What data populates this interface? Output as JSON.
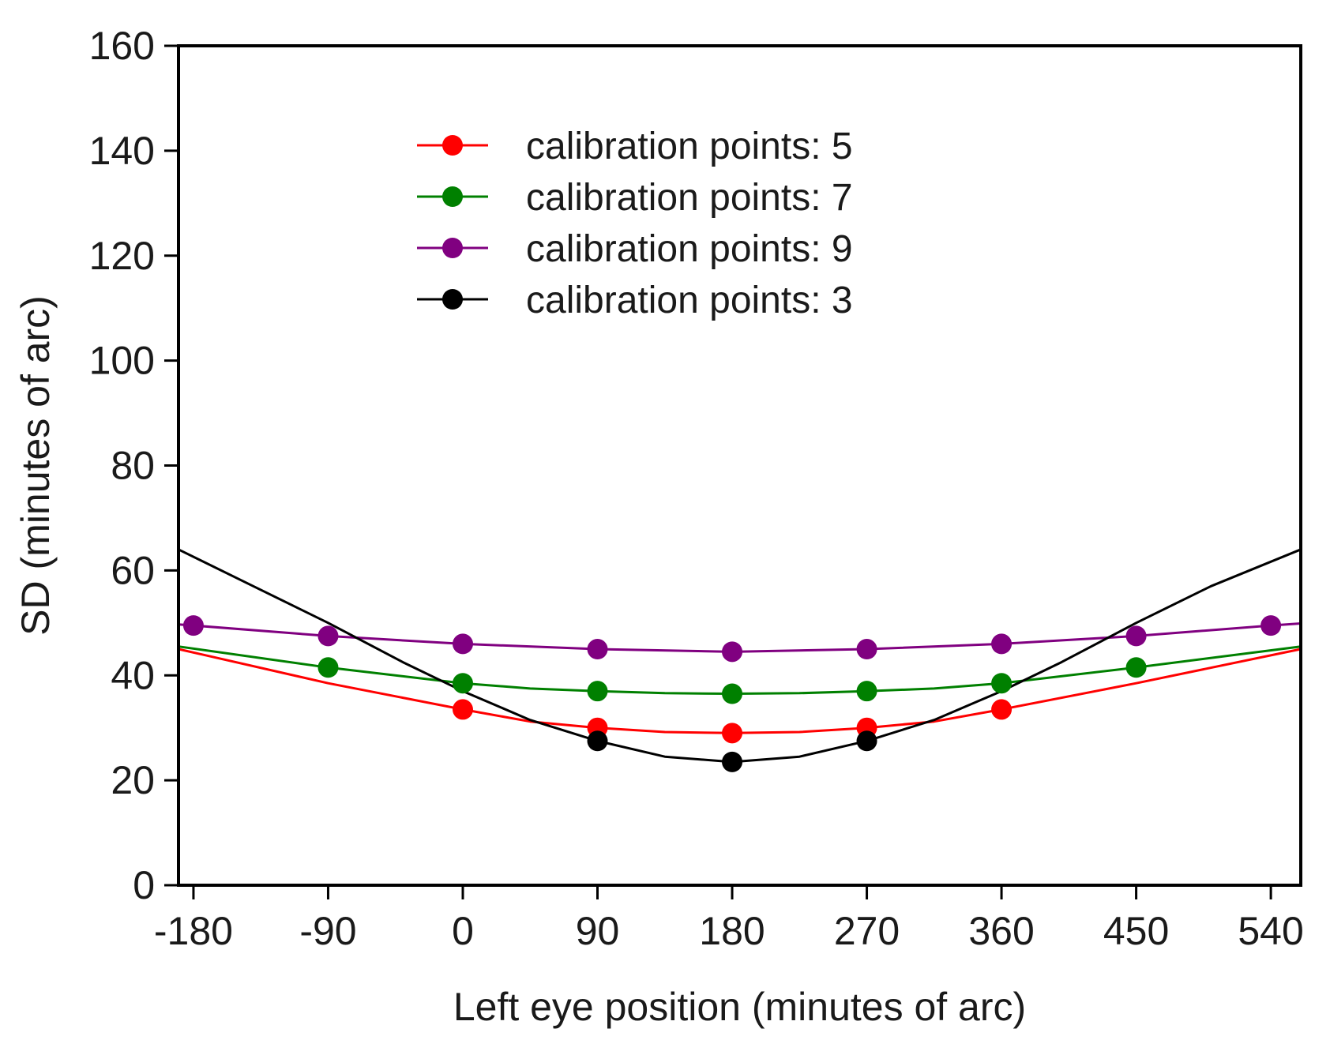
{
  "chart_data": {
    "type": "line",
    "title": "",
    "xlabel": "Left eye position (minutes of arc)",
    "ylabel": "SD (minutes of arc)",
    "xlim": [
      -190,
      560
    ],
    "ylim": [
      0,
      160
    ],
    "x_ticks": [
      -180,
      -90,
      0,
      90,
      180,
      270,
      360,
      450,
      540
    ],
    "y_ticks": [
      0,
      20,
      40,
      60,
      80,
      100,
      120,
      140,
      160
    ],
    "grid": false,
    "legend_position": "top-center",
    "series": [
      {
        "name": "calibration points: 5",
        "color": "#ff0000",
        "points": {
          "x": [
            0,
            90,
            180,
            270,
            360
          ],
          "y": [
            33.5,
            30,
            29,
            30,
            33.5
          ]
        },
        "curve": {
          "x": [
            -190,
            -90,
            0,
            45,
            90,
            135,
            180,
            225,
            270,
            315,
            360,
            450,
            560
          ],
          "y": [
            45,
            38.5,
            33.5,
            31.2,
            30,
            29.2,
            29,
            29.2,
            30,
            31.2,
            33.5,
            38.5,
            45
          ]
        }
      },
      {
        "name": "calibration points: 7",
        "color": "#008000",
        "points": {
          "x": [
            -90,
            0,
            90,
            180,
            270,
            360,
            450
          ],
          "y": [
            41.5,
            38.5,
            37,
            36.5,
            37,
            38.5,
            41.5
          ]
        },
        "curve": {
          "x": [
            -190,
            -90,
            0,
            45,
            90,
            135,
            180,
            225,
            270,
            315,
            360,
            450,
            560
          ],
          "y": [
            45.5,
            41.5,
            38.5,
            37.5,
            37,
            36.6,
            36.5,
            36.6,
            37,
            37.5,
            38.5,
            41.5,
            45.5
          ]
        }
      },
      {
        "name": "calibration points: 9",
        "color": "#800080",
        "points": {
          "x": [
            -180,
            -90,
            0,
            90,
            180,
            270,
            360,
            450,
            540
          ],
          "y": [
            49.5,
            47.5,
            46,
            45,
            44.5,
            45,
            46,
            47.5,
            49.5
          ]
        },
        "curve": {
          "x": [
            -190,
            -180,
            -90,
            0,
            90,
            180,
            270,
            360,
            450,
            540,
            560
          ],
          "y": [
            49.7,
            49.5,
            47.5,
            46,
            45,
            44.5,
            45,
            46,
            47.5,
            49.5,
            49.9
          ]
        }
      },
      {
        "name": "calibration points: 3",
        "color": "#000000",
        "points": {
          "x": [
            90,
            180,
            270
          ],
          "y": [
            27.5,
            23.5,
            27.5
          ]
        },
        "curve": {
          "x": [
            -190,
            -140,
            -90,
            -40,
            0,
            45,
            90,
            135,
            180,
            225,
            270,
            315,
            360,
            400,
            450,
            500,
            560
          ],
          "y": [
            64,
            57,
            50,
            42.5,
            37,
            31.5,
            27.5,
            24.5,
            23.5,
            24.5,
            27.5,
            31.5,
            37,
            42.5,
            50,
            57,
            64
          ]
        }
      }
    ]
  }
}
